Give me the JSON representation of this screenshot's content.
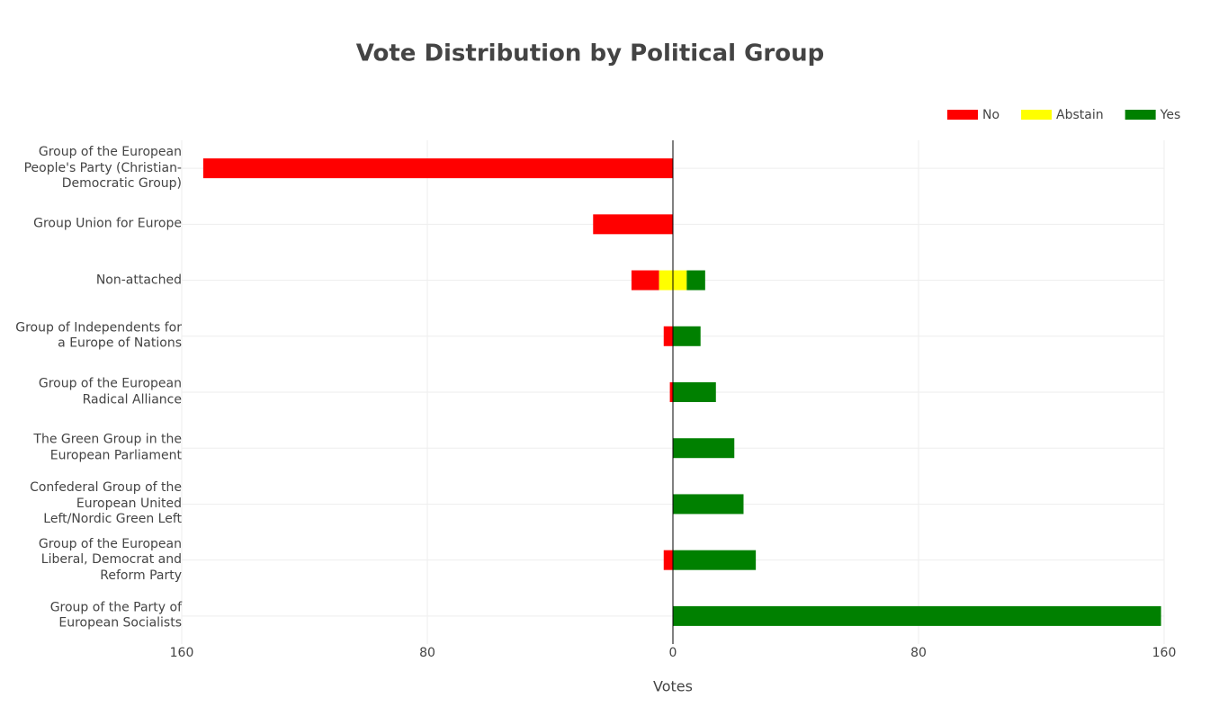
{
  "chart_data": {
    "type": "diverging-bar",
    "title": "Vote Distribution by Political Group",
    "x_label": "Votes",
    "categories": [
      "Group of the European People's Party (Christian-Democratic Group)",
      "Group Union for Europe",
      "Non-attached",
      "Group of Independents for a Europe of Nations",
      "Group of the European Radical Alliance",
      "The Green Group in the European Parliament",
      "Confederal Group of the European United Left/Nordic Green Left",
      "Group of the European Liberal, Democrat and Reform Party",
      "Group of the Party of European Socialists"
    ],
    "series": [
      {
        "name": "No",
        "color": "#ff0000",
        "values": [
          -153,
          -26,
          -9,
          -3,
          -1,
          0,
          0,
          -3,
          0
        ]
      },
      {
        "name": "Abstain",
        "color": "#ffff00",
        "values": [
          0,
          0,
          9,
          0,
          0,
          0,
          0,
          0,
          0
        ]
      },
      {
        "name": "Yes",
        "color": "#008000",
        "values": [
          0,
          0,
          6,
          9,
          14,
          20,
          23,
          27,
          159
        ]
      }
    ],
    "xlim": [
      -160,
      160
    ],
    "xticks": [
      {
        "value": -160,
        "label": "160"
      },
      {
        "value": -80,
        "label": "80"
      },
      0,
      80,
      160
    ],
    "grid": true,
    "legend": "top-right"
  }
}
